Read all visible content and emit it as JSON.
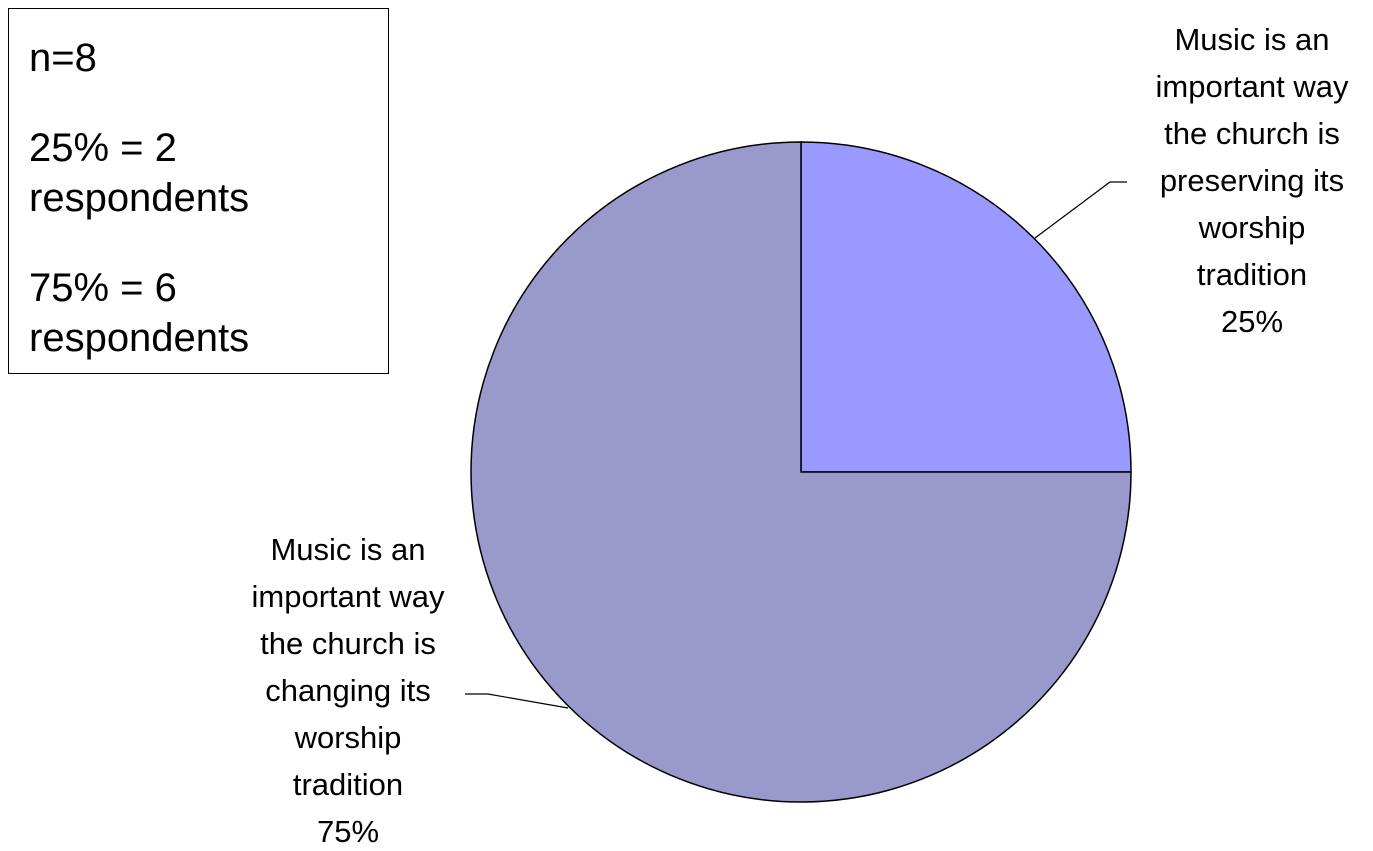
{
  "info_box": {
    "n": "n=8",
    "line_25_a": "25% = 2",
    "line_25_b": "respondents",
    "line_75_a": "75% = 6",
    "line_75_b": "respondents"
  },
  "chart_data": {
    "type": "pie",
    "slices": [
      {
        "label_lines": [
          "Music is an",
          "important way",
          "the church is",
          "preserving its",
          "worship",
          "tradition",
          "25%"
        ],
        "label": "Music is an important way the church is preserving its worship tradition",
        "value": 25,
        "color": "#9999ff"
      },
      {
        "label_lines": [
          "Music is an",
          "important way",
          "the church is",
          "changing its",
          "worship",
          "tradition",
          "75%"
        ],
        "label": "Music is an important way the church is changing its worship tradition",
        "value": 75,
        "color": "#9999cc"
      }
    ]
  }
}
